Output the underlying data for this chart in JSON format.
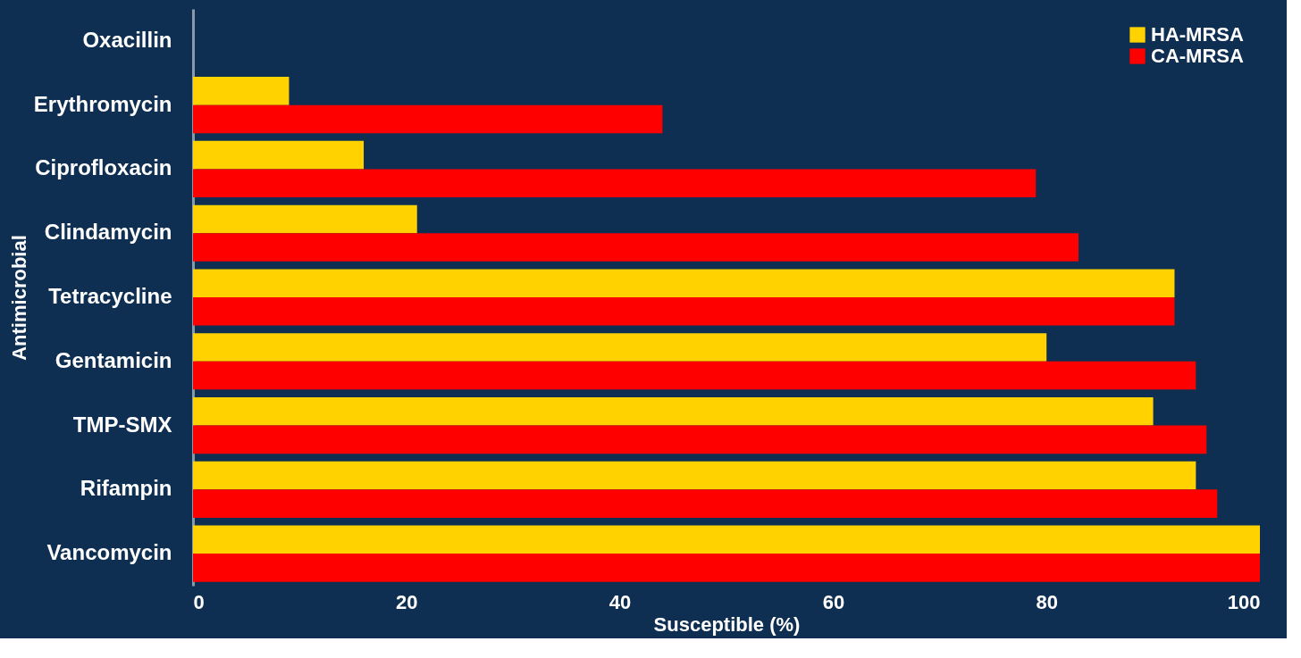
{
  "chart_data": {
    "type": "bar",
    "orientation": "horizontal",
    "xlabel": "Susceptible (%)",
    "ylabel": "Antimicrobial",
    "categories": [
      "Oxacillin",
      "Erythromycin",
      "Ciprofloxacin",
      "Clindamycin",
      "Tetracycline",
      "Gentamicin",
      "TMP-SMX",
      "Rifampin",
      "Vancomycin"
    ],
    "series": [
      {
        "name": "HA-MRSA",
        "color": "#ffd200",
        "values": [
          0,
          9,
          16,
          21,
          92,
          80,
          90,
          94,
          100
        ]
      },
      {
        "name": "CA-MRSA",
        "color": "#ff0000",
        "values": [
          0,
          44,
          79,
          83,
          92,
          94,
          95,
          96,
          100
        ]
      }
    ],
    "xlim": [
      0,
      100
    ],
    "xticks": [
      0,
      20,
      40,
      60,
      80,
      100
    ],
    "grid": false,
    "legend": "top right"
  }
}
